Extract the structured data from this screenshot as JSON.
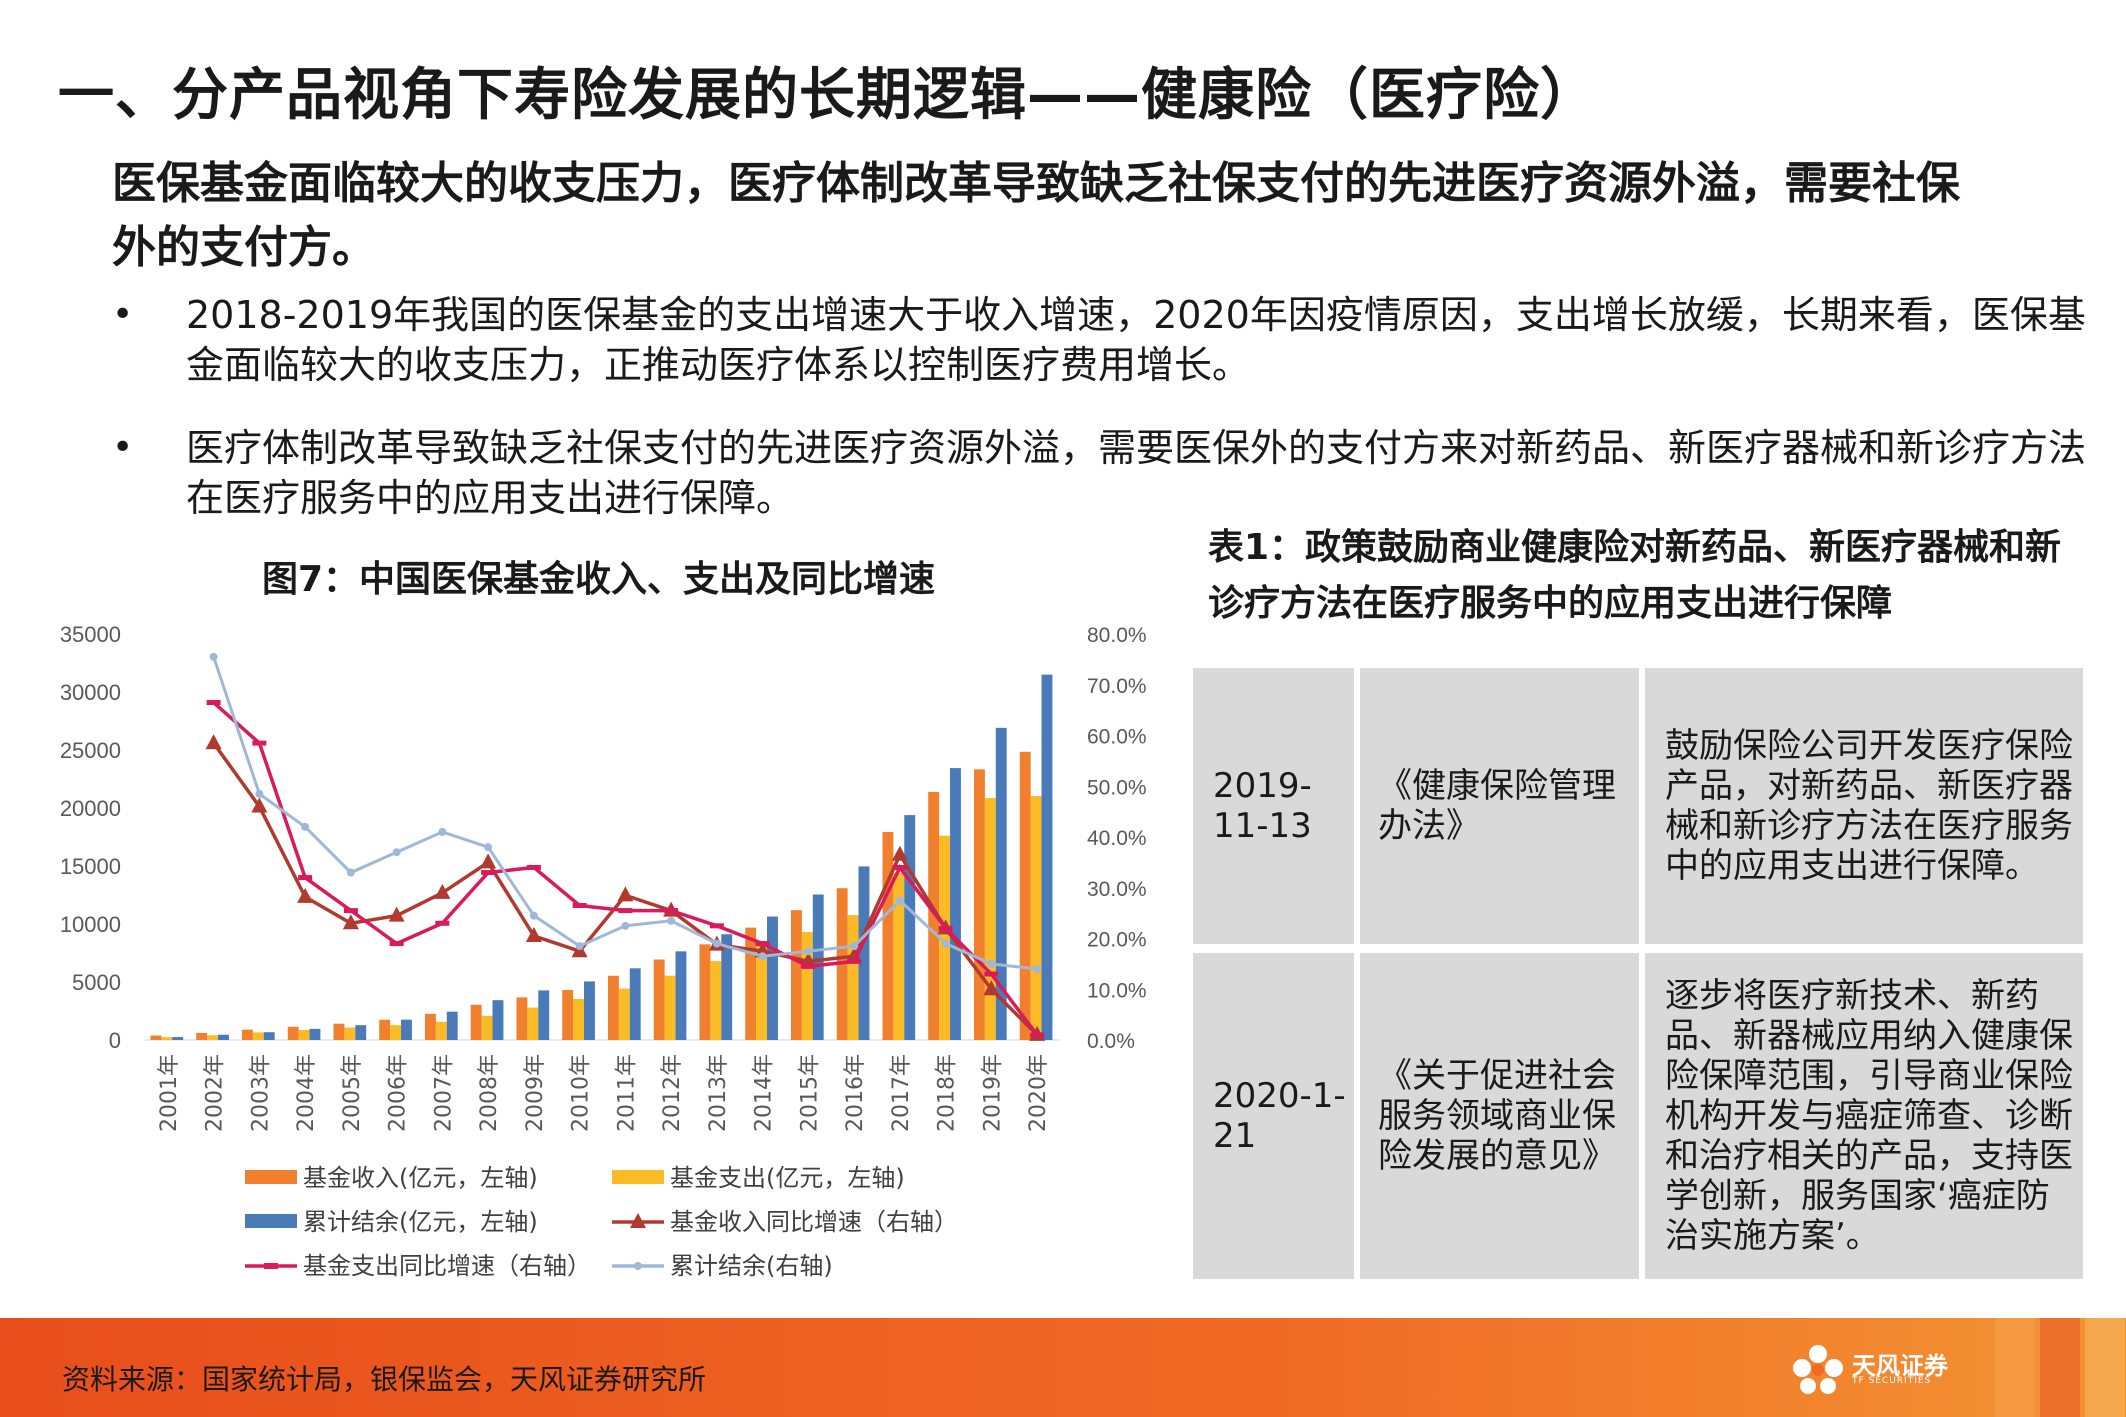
{
  "header": {
    "title": "一、分产品视角下寿险发展的长期逻辑——健康险（医疗险）",
    "subtitle": "医保基金面临较大的收支压力，医疗体制改革导致缺乏社保支付的先进医疗资源外溢，需要社保外的支付方。"
  },
  "bullets": [
    {
      "marker": "•",
      "text": "2018-2019年我国的医保基金的支出增速大于收入增速，2020年因疫情原因，支出增长放缓，长期来看，医保基金面临较大的收支压力，正推动医疗体系以控制医疗费用增长。"
    },
    {
      "marker": "•",
      "text": "医疗体制改革导致缺乏社保支付的先进医疗资源外溢，需要医保外的支付方来对新药品、新医疗器械和新诊疗方法在医疗服务中的应用支出进行保障。"
    }
  ],
  "chart_title": "图7：中国医保基金收入、支出及同比增速",
  "chart_data": {
    "type": "bar",
    "categories": [
      "2001年",
      "2002年",
      "2003年",
      "2004年",
      "2005年",
      "2006年",
      "2007年",
      "2008年",
      "2009年",
      "2010年",
      "2011年",
      "2012年",
      "2013年",
      "2014年",
      "2015年",
      "2016年",
      "2017年",
      "2018年",
      "2019年",
      "2020年"
    ],
    "y_left": {
      "ticks": [
        "35000",
        "30000",
        "25000",
        "20000",
        "15000",
        "10000",
        "5000",
        "0"
      ],
      "ylim": [
        0,
        35000
      ]
    },
    "y_right": {
      "ticks": [
        "80.0%",
        "70.0%",
        "60.0%",
        "50.0%",
        "40.0%",
        "30.0%",
        "20.0%",
        "10.0%",
        "0.0%"
      ],
      "ylim": [
        0,
        0.8
      ]
    },
    "bar_series": [
      {
        "name": "基金收入(亿元，左轴)",
        "color": "#f0802e",
        "values": [
          384,
          608,
          890,
          1141,
          1405,
          1747,
          2257,
          3040,
          3672,
          4309,
          5539,
          6939,
          8248,
          9687,
          11193,
          13084,
          17932,
          21384,
          23335,
          24846
        ]
      },
      {
        "name": "基金支出(亿元，左轴)",
        "color": "#fbbb24",
        "values": [
          244,
          409,
          654,
          862,
          1079,
          1277,
          1562,
          2084,
          2797,
          3538,
          4431,
          5544,
          6801,
          8134,
          9312,
          10767,
          14422,
          17608,
          20854,
          21032
        ]
      },
      {
        "name": "累计结余(亿元，左轴)",
        "color": "#4a7ab8",
        "values": [
          253,
          451,
          671,
          958,
          1278,
          1752,
          2441,
          3432,
          4276,
          5047,
          6180,
          7644,
          9116,
          10645,
          12543,
          14964,
          19386,
          23440,
          26912,
          31500
        ]
      }
    ],
    "line_series": [
      {
        "name": "基金收入同比增速（右轴）",
        "color": "#b03a2e",
        "marker": "triangle",
        "axis": "right",
        "values": [
          null,
          0.585,
          0.46,
          0.282,
          0.23,
          0.245,
          0.29,
          0.35,
          0.205,
          0.175,
          0.285,
          0.255,
          0.188,
          0.175,
          0.155,
          0.165,
          0.365,
          0.22,
          0.1,
          0.01
        ]
      },
      {
        "name": "基金支出同比增速（右轴）",
        "color": "#d91b5c",
        "marker": "dash",
        "axis": "right",
        "values": [
          null,
          0.665,
          0.585,
          0.32,
          0.255,
          0.19,
          0.23,
          0.33,
          0.34,
          0.265,
          0.255,
          0.255,
          0.225,
          0.19,
          0.145,
          0.155,
          0.34,
          0.22,
          0.13,
          0.01
        ]
      },
      {
        "name": "累计结余(右轴)",
        "color": "#9fb8d8",
        "marker": "circle",
        "axis": "right",
        "values": [
          null,
          0.755,
          0.485,
          0.42,
          0.33,
          0.37,
          0.41,
          0.38,
          0.245,
          0.185,
          0.225,
          0.235,
          0.19,
          0.165,
          0.175,
          0.185,
          0.275,
          0.19,
          0.15,
          0.14
        ]
      }
    ],
    "legend_placement": "bottom"
  },
  "table_title": "表1：政策鼓励商业健康险对新药品、新医疗器械和新诊疗方法在医疗服务中的应用支出进行保障",
  "table_rows": [
    {
      "date": "2019-11-13",
      "doc": "《健康保险管理办法》",
      "content": "鼓励保险公司开发医疗保险产品，对新药品、新医疗器械和新诊疗方法在医疗服务中的应用支出进行保障。"
    },
    {
      "date": "2020-1-21",
      "doc": "《关于促进社会服务领域商业保险发展的意见》",
      "content": "逐步将医疗新技术、新药品、新器械应用纳入健康保险保障范围，引导商业保险机构开发与癌症筛查、诊断和治疗相关的产品，支持医学创新，服务国家‘癌症防治实施方案’。"
    }
  ],
  "footer": {
    "source": "资料来源：国家统计局，银保监会，天风证券研究所",
    "logo_text": "天风证券",
    "logo_sub": "TF SECURITIES"
  }
}
